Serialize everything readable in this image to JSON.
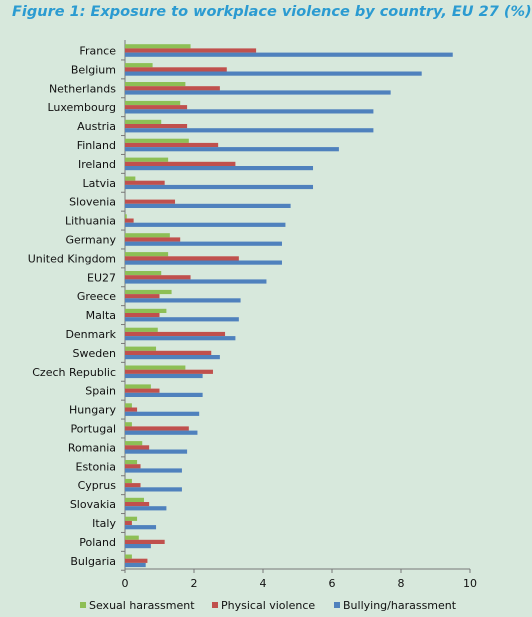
{
  "chart_data": {
    "type": "bar",
    "orientation": "horizontal",
    "title": "Figure 1: Exposure to workplace violence by country, EU 27 (%)",
    "categories": [
      "France",
      "Belgium",
      "Netherlands",
      "Luxembourg",
      "Austria",
      "Finland",
      "Ireland",
      "Latvia",
      "Slovenia",
      "Lithuania",
      "Germany",
      "United Kingdom",
      "EU27",
      "Greece",
      "Malta",
      "Denmark",
      "Sweden",
      "Czech Republic",
      "Spain",
      "Hungary",
      "Portugal",
      "Romania",
      "Estonia",
      "Cyprus",
      "Slovakia",
      "Italy",
      "Poland",
      "Bulgaria"
    ],
    "series": [
      {
        "name": "Sexual harassment",
        "color": "#8dbf55",
        "values": [
          1.9,
          0.8,
          1.75,
          1.6,
          1.05,
          1.85,
          1.25,
          0.3,
          0.0,
          0.05,
          1.3,
          1.25,
          1.05,
          1.35,
          1.2,
          0.95,
          0.9,
          1.75,
          0.75,
          0.2,
          0.2,
          0.5,
          0.35,
          0.2,
          0.55,
          0.35,
          0.4,
          0.2
        ]
      },
      {
        "name": "Physical violence",
        "color": "#c0504d",
        "values": [
          3.8,
          2.95,
          2.75,
          1.8,
          1.8,
          2.7,
          3.2,
          1.15,
          1.45,
          0.25,
          1.6,
          3.3,
          1.9,
          1.0,
          1.0,
          2.9,
          2.5,
          2.55,
          1.0,
          0.35,
          1.85,
          0.7,
          0.45,
          0.45,
          0.7,
          0.2,
          1.15,
          0.65
        ]
      },
      {
        "name": "Bullying/harassment",
        "color": "#4f81bd",
        "values": [
          9.5,
          8.6,
          7.7,
          7.2,
          7.2,
          6.2,
          5.45,
          5.45,
          4.8,
          4.65,
          4.55,
          4.55,
          4.1,
          3.35,
          3.3,
          3.2,
          2.75,
          2.25,
          2.25,
          2.15,
          2.1,
          1.8,
          1.65,
          1.65,
          1.2,
          0.9,
          0.75,
          0.6
        ]
      }
    ],
    "xlim": [
      0,
      10
    ],
    "xticks": [
      "0",
      "2",
      "4",
      "6",
      "8",
      "10"
    ],
    "grid": false,
    "legend_position": "bottom"
  }
}
